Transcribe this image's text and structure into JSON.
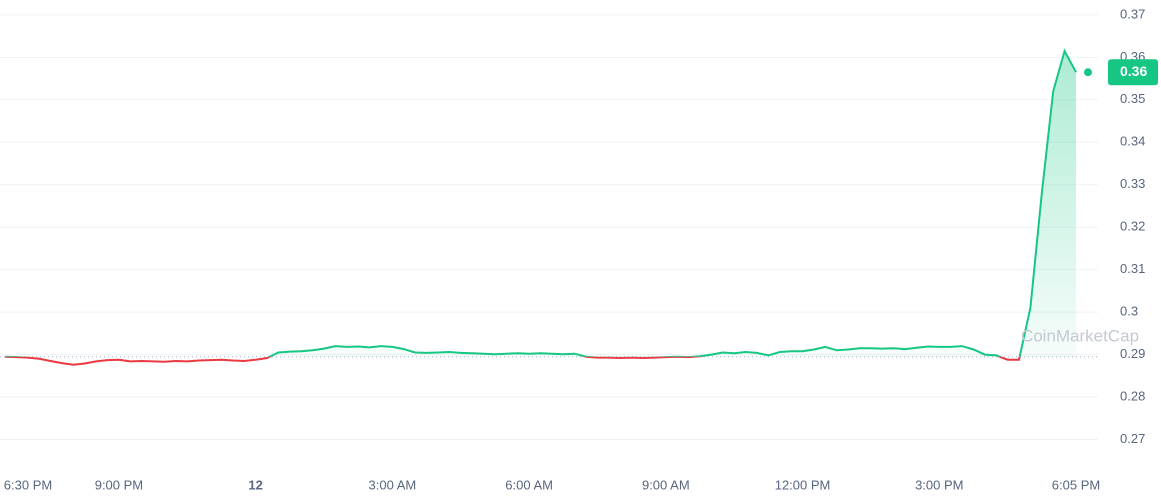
{
  "chart_data": {
    "type": "line",
    "watermark": "CoinMarketCap",
    "categories": [
      "6:30 PM",
      null,
      null,
      null,
      null,
      null,
      null,
      null,
      null,
      null,
      "9:00 PM",
      null,
      null,
      null,
      null,
      null,
      null,
      null,
      null,
      null,
      null,
      null,
      "12",
      null,
      null,
      null,
      null,
      null,
      null,
      null,
      null,
      null,
      null,
      null,
      "3:00 AM",
      null,
      null,
      null,
      null,
      null,
      null,
      null,
      null,
      null,
      null,
      null,
      "6:00 AM",
      null,
      null,
      null,
      null,
      null,
      null,
      null,
      null,
      null,
      null,
      null,
      "9:00 AM",
      null,
      null,
      null,
      null,
      null,
      null,
      null,
      null,
      null,
      null,
      null,
      "12:00 PM",
      null,
      null,
      null,
      null,
      null,
      null,
      null,
      null,
      null,
      null,
      null,
      "3:00 PM",
      null,
      null,
      null,
      null,
      null,
      null,
      null,
      null,
      null,
      null,
      null,
      "6:05 PM"
    ],
    "series": [
      {
        "up_color": "#16c784",
        "down_color": "#ea3943",
        "values": [
          0.2895,
          0.2894,
          0.2893,
          0.289,
          0.2885,
          0.288,
          0.2876,
          0.2879,
          0.2884,
          0.2887,
          0.2888,
          0.2884,
          0.2885,
          0.2884,
          0.2883,
          0.2885,
          0.2884,
          0.2886,
          0.2887,
          0.2888,
          0.2886,
          0.2885,
          0.2888,
          0.2892,
          0.2905,
          0.2907,
          0.2908,
          0.291,
          0.2914,
          0.292,
          0.2918,
          0.2919,
          0.2917,
          0.292,
          0.2918,
          0.2913,
          0.2905,
          0.2904,
          0.2905,
          0.2906,
          0.2904,
          0.2903,
          0.2902,
          0.2901,
          0.2902,
          0.2903,
          0.2902,
          0.2903,
          0.2902,
          0.2901,
          0.2902,
          0.2895,
          0.2893,
          0.2893,
          0.2892,
          0.2893,
          0.2892,
          0.2893,
          0.2894,
          0.2895,
          0.2894,
          0.2896,
          0.29,
          0.2905,
          0.2903,
          0.2906,
          0.2904,
          0.2898,
          0.2906,
          0.2908,
          0.2908,
          0.2912,
          0.2918,
          0.291,
          0.2912,
          0.2915,
          0.2915,
          0.2914,
          0.2915,
          0.2913,
          0.2916,
          0.2919,
          0.2918,
          0.2918,
          0.292,
          0.2912,
          0.29,
          0.2898,
          0.2888,
          0.2888,
          0.301,
          0.328,
          0.352,
          0.3615,
          0.3565
        ]
      }
    ],
    "baseline": 0.2895,
    "current_price": {
      "value": 0.3565,
      "label": "0.36"
    },
    "ylim": [
      0.264,
      0.3735
    ],
    "yticks": [
      0.27,
      0.28,
      0.29,
      0.3,
      0.31,
      0.32,
      0.33,
      0.34,
      0.35,
      0.36,
      0.37
    ],
    "grid": true
  }
}
